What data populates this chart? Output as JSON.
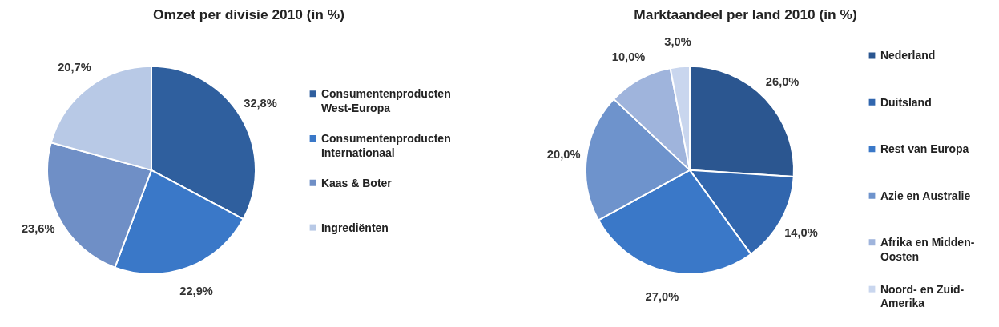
{
  "chart_data": [
    {
      "type": "pie",
      "title": "Omzet per divisie 2010 (in %)",
      "categories": [
        "Consumentenproducten West-Europa",
        "Consumentenproducten Internationaal",
        "Kaas & Boter",
        "Ingrediënten"
      ],
      "values": [
        32.8,
        22.9,
        23.6,
        20.7
      ],
      "value_labels": [
        "32,8%",
        "22,9%",
        "23,6%",
        "20,7%"
      ],
      "colors": [
        "#2f5f9e",
        "#3a78c8",
        "#6f8fc6",
        "#b8c9e6"
      ],
      "legend": "right"
    },
    {
      "type": "pie",
      "title": "Marktaandeel per land 2010 (in %)",
      "categories": [
        "Nederland",
        "Duitsland",
        "Rest van Europa",
        "Azie en Australie",
        "Afrika en Midden-Oosten",
        "Noord- en Zuid-Amerika"
      ],
      "values": [
        26.0,
        14.0,
        27.0,
        20.0,
        10.0,
        3.0
      ],
      "value_labels": [
        "26,0%",
        "14,0%",
        "27,0%",
        "20,0%",
        "10,0%",
        "3,0%"
      ],
      "colors": [
        "#2b5690",
        "#3166ae",
        "#3a78c8",
        "#6e93cc",
        "#9fb4dc",
        "#c9d6ee"
      ],
      "legend": "right"
    }
  ]
}
